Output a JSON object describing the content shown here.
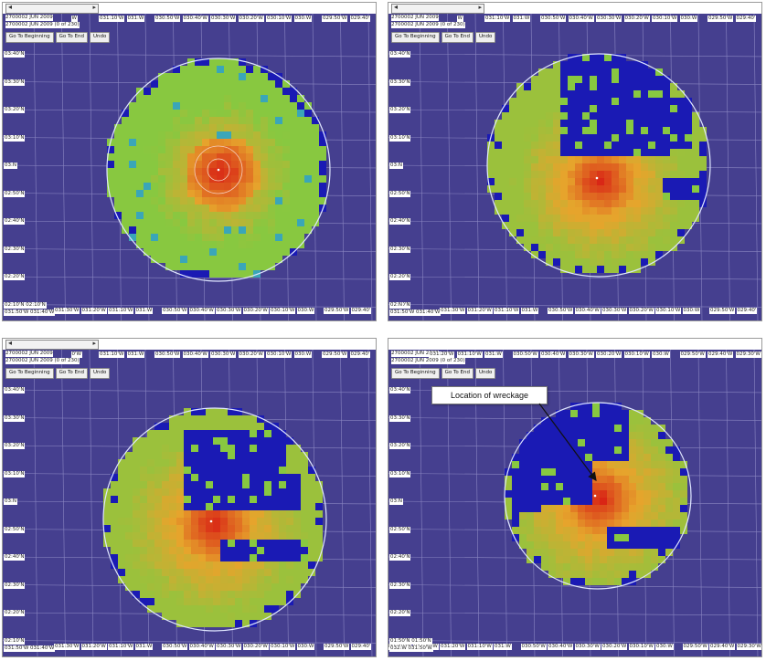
{
  "panels": [
    {
      "id": "p1",
      "info_lines": [
        "2700002 JUN 2009",
        "2700002 JUN 2009 (0 of 230)"
      ],
      "top_labels": [
        "W",
        "031:10'W",
        "031:W",
        "030:50'W",
        "030:40'W",
        "030:30'W",
        "030:20'W",
        "030:10'W",
        "030:W",
        "029:50'W",
        "029:40'"
      ],
      "left_labels": [
        "03:40'N",
        "03:30'N",
        "03:20'N",
        "03:10'N",
        "03:N",
        "02:50'N",
        "02:40'N",
        "02:30'N",
        "02:20'N"
      ],
      "bottom_labels": [
        "031:30'W",
        "031:20'W",
        "031:10'W",
        "031:W",
        "030:50'W",
        "030:40'W",
        "030:30'W",
        "030:20'W",
        "030:10'W",
        "030:W",
        "029:50'W",
        "029:40'"
      ],
      "corner_labels": [
        "02:10'N 02:10'N",
        "031:50'W 031:40'W"
      ]
    },
    {
      "id": "p2",
      "info_lines": [
        "2700002 JUN 2009",
        "2700002 JUN 2009 (0 of 230)"
      ],
      "top_labels": [
        "W",
        "031:10'W",
        "031:W",
        "030:50'W",
        "030:40'W",
        "030:30'W",
        "030:20'W",
        "030:10'W",
        "030:W",
        "029:50'W",
        "029:40'"
      ],
      "left_labels": [
        "03:40'N",
        "03:30'N",
        "03:20'N",
        "03:10'N",
        "03:N",
        "02:50'N",
        "02:40'N",
        "02:30'N",
        "02:20'N",
        "02:10'N"
      ],
      "bottom_labels": [
        "031:30'W",
        "031:20'W",
        "031:10'W",
        "031:W",
        "030:50'W",
        "030:40'W",
        "030:30'W",
        "030:20'W",
        "030:10'W",
        "030:W",
        "029:50'W",
        "029:40'"
      ],
      "corner_labels": [
        "02:N",
        "031:50'W 031:40'W"
      ]
    },
    {
      "id": "p3",
      "info_lines": [
        "2700002 JUN 2009",
        "2700002 JUN 2009 (0 of 230)"
      ],
      "top_labels": [
        "0'W",
        "031:10'W",
        "031:W",
        "030:50'W",
        "030:40'W",
        "030:30'W",
        "030:20'W",
        "030:10'W",
        "030:W",
        "029:50'W",
        "029:40'"
      ],
      "left_labels": [
        "03:40'N",
        "03:30'N",
        "03:20'N",
        "03:10'N",
        "03:N",
        "02:50'N",
        "02:40'N",
        "02:30'N",
        "02:20'N"
      ],
      "bottom_labels": [
        "031:30'W",
        "031:20'W",
        "031:10'W",
        "031:W",
        "030:50'W",
        "030:40'W",
        "030:30'W",
        "030:20'W",
        "030:10'W",
        "030:W",
        "029:50'W",
        "029:40'"
      ],
      "corner_labels": [
        "02:10'N",
        "031:50'W 031:40'W"
      ]
    },
    {
      "id": "p4",
      "info_lines": [
        "2700002 JUN 2009",
        "2700002 JUN 2009 (0 of 230)"
      ],
      "top_labels": [
        "031:20'W",
        "031:10'W",
        "031:W",
        "030:50'W",
        "030:40'W",
        "030:30'W",
        "030:20'W",
        "030:10'W",
        "030:W",
        "029:50'W",
        "029:40'W",
        "029:30'W"
      ],
      "left_labels": [
        "03:40'N",
        "03:30'N",
        "03:20'N",
        "03:10'N",
        "03:N",
        "02:50'N",
        "02:40'N",
        "02:30'N",
        "02:20'N",
        "02:10'N"
      ],
      "bottom_labels": [
        "031:40'W",
        "031:30'W",
        "031:20'W",
        "031:10'W",
        "031:W",
        "030:50'W",
        "030:40'W",
        "030:30'W",
        "030:20'W",
        "030:10'W",
        "030:W",
        "029:50'W",
        "029:40'W",
        "029:30'W"
      ],
      "corner_labels": [
        "01:50'N 01:50'N",
        "032:W 031:50'W"
      ]
    }
  ],
  "buttons": {
    "go_to_beginning": "Go To Beginning",
    "go_to_end": "Go To End",
    "undo": "Undo"
  },
  "annotation": {
    "label": "Location of wreckage"
  },
  "colors": {
    "background": "#453f8f",
    "high": "#d81e14",
    "mid": "#e6a42c",
    "low": "#88c840",
    "none": "#1a1ab4"
  }
}
